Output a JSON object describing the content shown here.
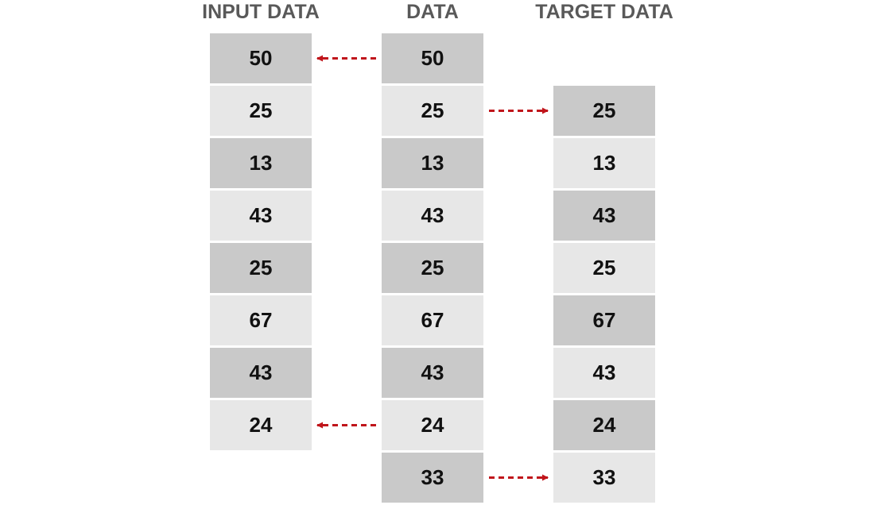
{
  "titles": {
    "input": "INPUT DATA",
    "data": "DATA",
    "target": "TARGET DATA"
  },
  "columns": {
    "input": [
      "50",
      "25",
      "13",
      "43",
      "25",
      "67",
      "43",
      "24"
    ],
    "data": [
      "50",
      "25",
      "13",
      "43",
      "25",
      "67",
      "43",
      "24",
      "33"
    ],
    "target": [
      "25",
      "13",
      "43",
      "25",
      "67",
      "43",
      "24",
      "33"
    ]
  },
  "arrows": [
    {
      "from": "data",
      "to": "input",
      "data_row": 0
    },
    {
      "from": "data",
      "to": "target",
      "data_row": 1
    },
    {
      "from": "data",
      "to": "input",
      "data_row": 7
    },
    {
      "from": "data",
      "to": "target",
      "data_row": 8
    }
  ],
  "colors": {
    "cell_dark": "#c9c9c9",
    "cell_light": "#e7e7e7",
    "arrow": "#c0151b",
    "title": "#595959"
  }
}
